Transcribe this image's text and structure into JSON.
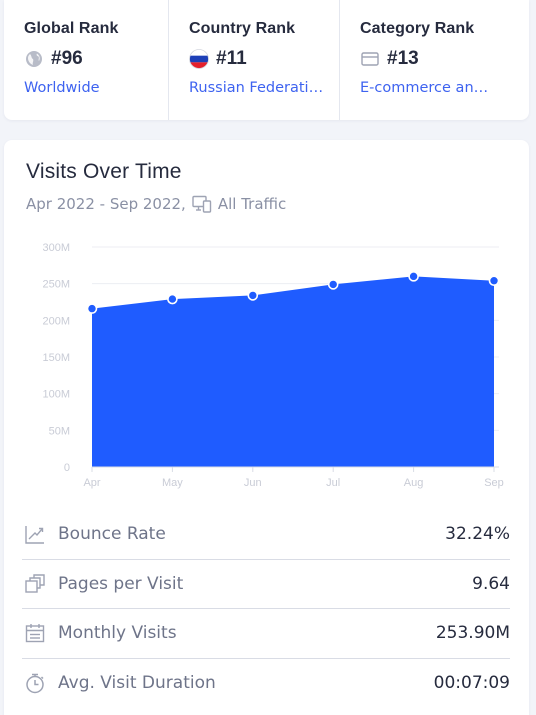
{
  "ranks": [
    {
      "title": "Global Rank",
      "value": "#96",
      "link": "Worldwide",
      "icon": "globe-icon"
    },
    {
      "title": "Country Rank",
      "value": "#11",
      "link": "Russian Federati…",
      "icon": "russia-flag-icon"
    },
    {
      "title": "Category Rank",
      "value": "#13",
      "link": "E-commerce an…",
      "icon": "category-icon"
    }
  ],
  "visits": {
    "title": "Visits Over Time",
    "period": "Apr 2022 - Sep 2022,",
    "traffic_type": "All Traffic"
  },
  "colors": {
    "accent": "#1f5cff",
    "link": "#3e63f0"
  },
  "chart_data": {
    "type": "area",
    "categories": [
      "Apr",
      "May",
      "Jun",
      "Jul",
      "Aug",
      "Sep"
    ],
    "series": [
      {
        "values": [
          216000000,
          229000000,
          234000000,
          249000000,
          260000000,
          254000000
        ]
      }
    ],
    "ylim": [
      0,
      300000000
    ],
    "yticks": [
      0,
      50000000,
      100000000,
      150000000,
      200000000,
      250000000,
      300000000
    ],
    "ytick_labels": [
      "0",
      "50M",
      "100M",
      "150M",
      "200M",
      "250M",
      "300M"
    ],
    "grid": true,
    "xlabel": "",
    "ylabel": ""
  },
  "metrics": [
    {
      "label": "Bounce Rate",
      "value": "32.24%",
      "icon": "bounce-rate-icon"
    },
    {
      "label": "Pages per Visit",
      "value": "9.64",
      "icon": "pages-icon"
    },
    {
      "label": "Monthly Visits",
      "value": "253.90M",
      "icon": "calendar-icon"
    },
    {
      "label": "Avg. Visit Duration",
      "value": "00:07:09",
      "icon": "timer-icon"
    }
  ]
}
